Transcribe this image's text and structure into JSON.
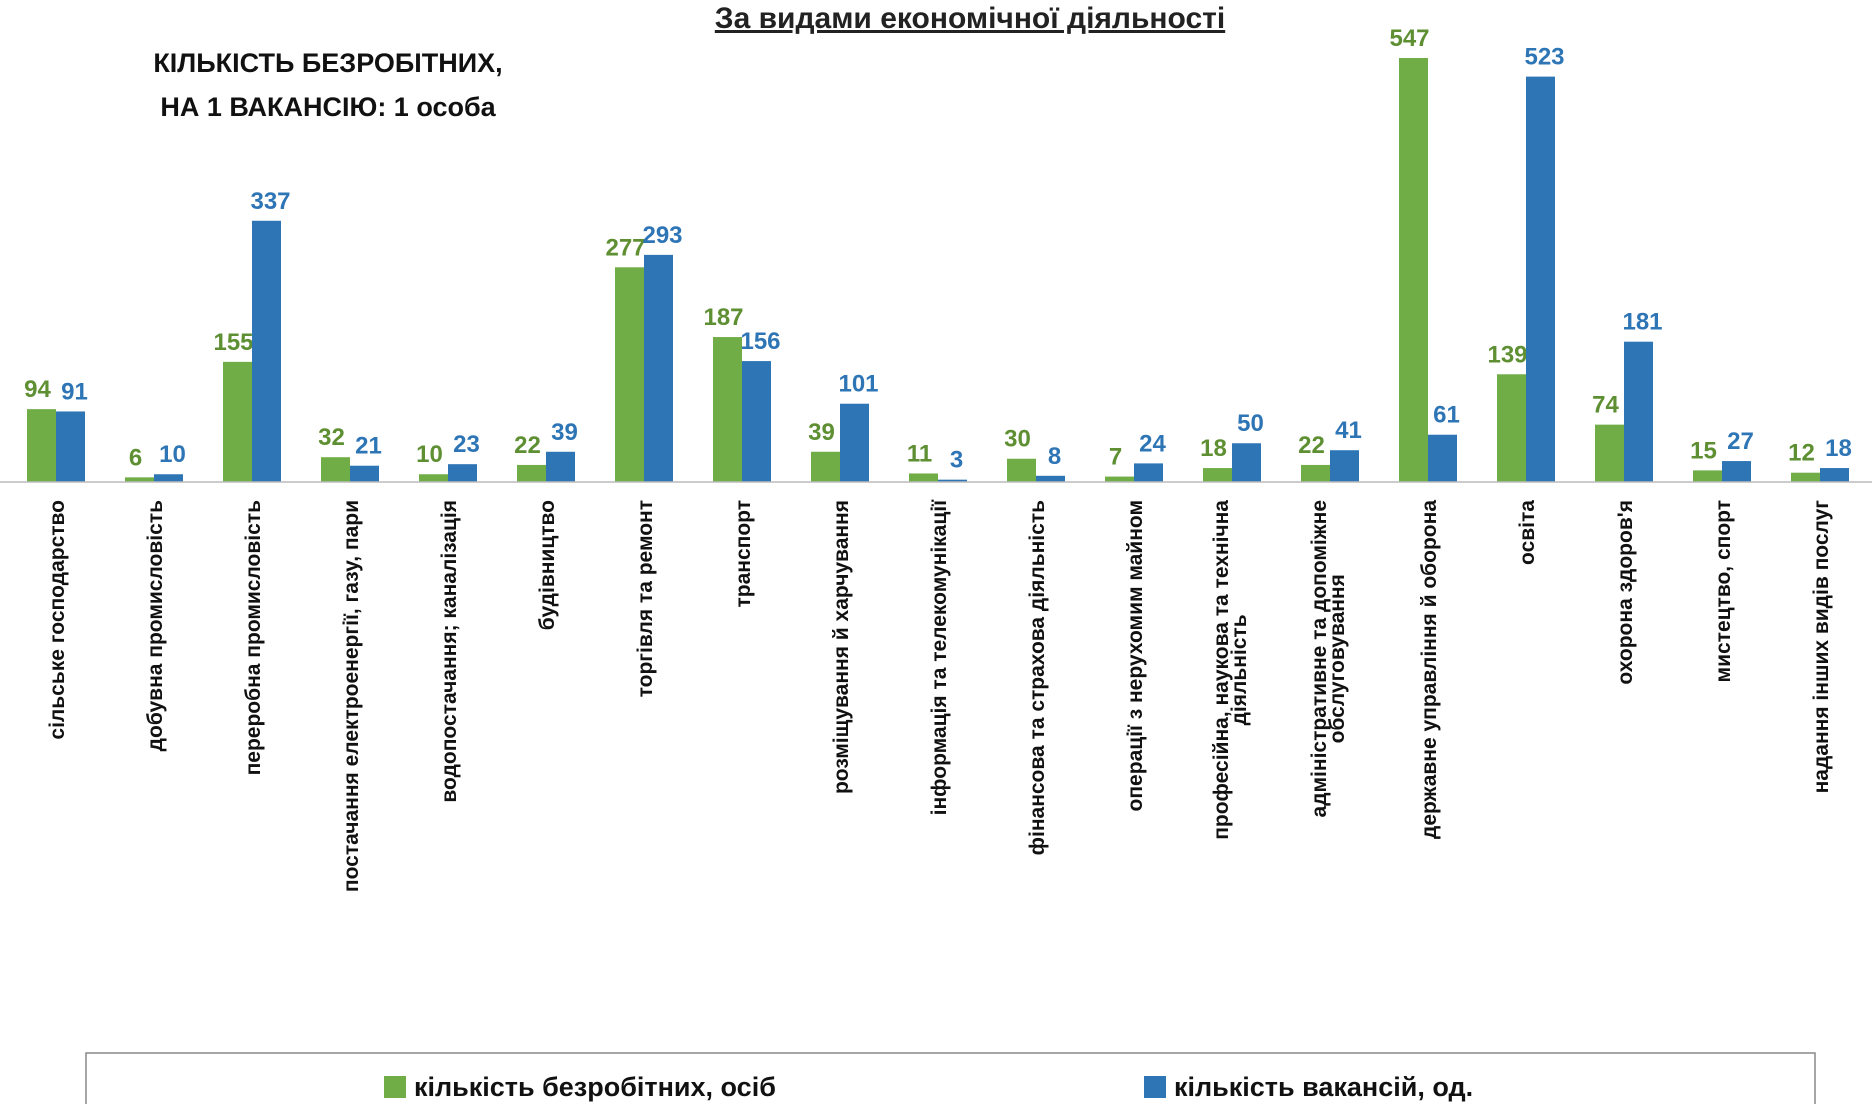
{
  "chart_data": {
    "type": "bar",
    "title": "За видами економічної діяльності",
    "annotation": [
      "КІЛЬКІСТЬ БЕЗРОБІТНИХ,",
      "НА 1 ВАКАНСІЮ: 1 особа"
    ],
    "categories": [
      "сільське господарство",
      "добувна промисловість",
      "переробна промисловість",
      "постачання електроенергії, газу, пари",
      "водопостачання; каналізація",
      "будівництво",
      "торгівля та ремонт",
      "транспорт",
      "розміщування й харчування",
      "інформація та телекомунікації",
      "фінансова та страхова діяльність",
      "операції з нерухомим майном",
      [
        "професійна, наукова та технічна",
        "діяльність"
      ],
      [
        "адміністративне та допоміжне",
        "обслуговування"
      ],
      "державне управління й оборона",
      "освіта",
      "охорона здоров'я",
      "мистецтво, спорт",
      "надання інших видів послуг"
    ],
    "series": [
      {
        "name": "кількість безробітних, осіб",
        "color": "#70ad47",
        "label_color": "#5e8f32",
        "values": [
          94,
          6,
          155,
          32,
          10,
          22,
          277,
          187,
          39,
          11,
          30,
          7,
          18,
          22,
          547,
          139,
          74,
          15,
          12
        ]
      },
      {
        "name": "кількість вакансій, од.",
        "color": "#2e75b6",
        "label_color": "#2e75b6",
        "values": [
          91,
          10,
          337,
          21,
          23,
          39,
          293,
          156,
          101,
          3,
          8,
          24,
          50,
          41,
          61,
          523,
          181,
          27,
          18
        ]
      }
    ],
    "legend": "bottom"
  }
}
